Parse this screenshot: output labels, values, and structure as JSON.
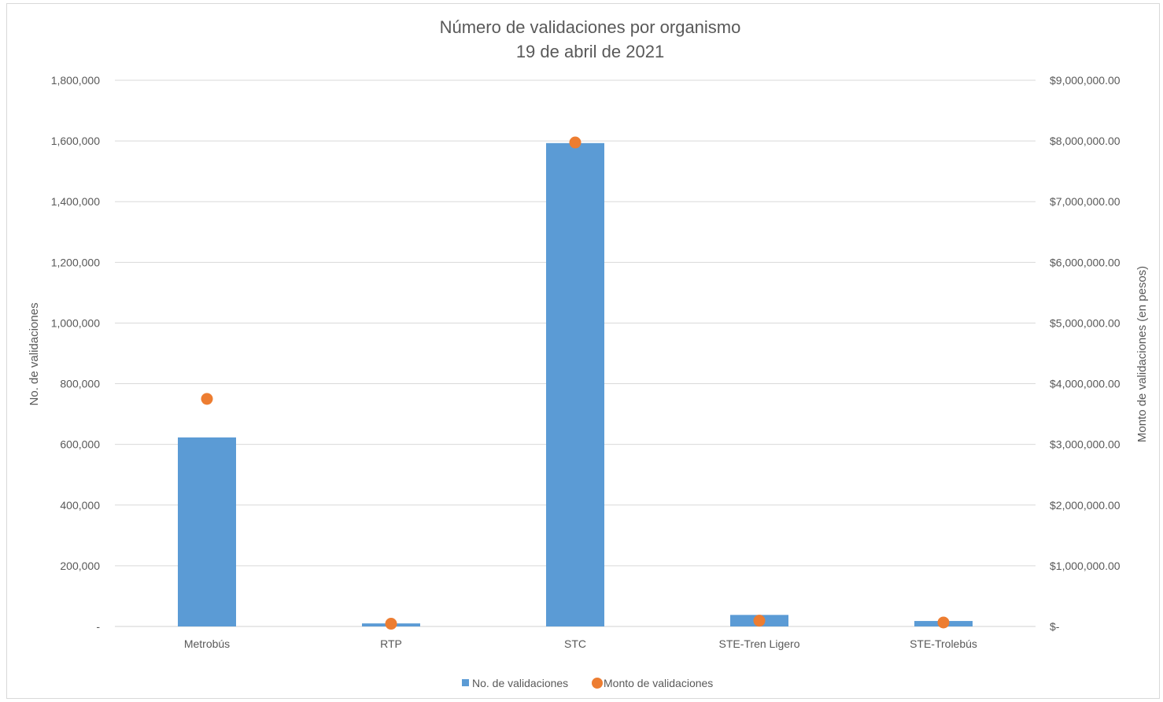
{
  "chart_data": {
    "type": "bar",
    "title": "Número de validaciones por organismo",
    "subtitle": "19 de abril de 2021",
    "categories": [
      "Metrobús",
      "RTP",
      "STC",
      "STE-Tren Ligero",
      "STE-Trolebús"
    ],
    "series": [
      {
        "name": "No. de validaciones",
        "type": "bar",
        "axis": "left",
        "color": "#5b9bd5",
        "values": [
          623000,
          10000,
          1593000,
          38000,
          18000
        ]
      },
      {
        "name": "Monto de validaciones",
        "type": "scatter",
        "axis": "right",
        "color": "#ed7d31",
        "values": [
          3750000,
          45000,
          7975000,
          95000,
          65000
        ]
      }
    ],
    "ylabel": "No. de validaciones",
    "y2label": "Monto de validaciones (en pesos)",
    "ylim": [
      0,
      1800000
    ],
    "y2lim": [
      0,
      9000000
    ],
    "yticks": [
      "-",
      "200,000",
      "400,000",
      "600,000",
      "800,000",
      "1,000,000",
      "1,200,000",
      "1,400,000",
      "1,600,000",
      "1,800,000"
    ],
    "y2ticks": [
      "$-",
      "$1,000,000.00",
      "$2,000,000.00",
      "$3,000,000.00",
      "$4,000,000.00",
      "$5,000,000.00",
      "$6,000,000.00",
      "$7,000,000.00",
      "$8,000,000.00",
      "$9,000,000.00"
    ],
    "grid": true,
    "legend_position": "bottom",
    "axis_color": "#595959",
    "grid_color": "#d9d9d9"
  }
}
